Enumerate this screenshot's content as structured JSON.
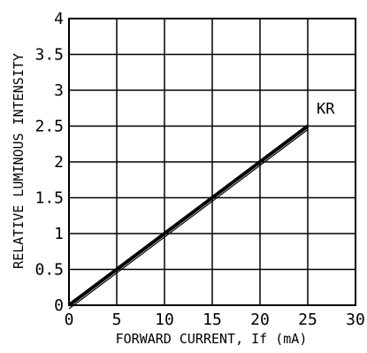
{
  "chart_data": {
    "type": "line",
    "xlabel": "FORWARD CURRENT, If (mA)",
    "ylabel": "RELATIVE LUMINOUS INTENSITY",
    "xlim": [
      0,
      30
    ],
    "ylim": [
      0,
      4
    ],
    "x_ticks": [
      "0",
      "5",
      "10",
      "15",
      "20",
      "25",
      "30"
    ],
    "y_ticks": [
      "0",
      "0.5",
      "1",
      "1.5",
      "2",
      "2.5",
      "3",
      "3.5",
      "4"
    ],
    "grid": true,
    "series": [
      {
        "name": "KR",
        "x": [
          0,
          25
        ],
        "y": [
          0,
          2.5
        ],
        "color": "#000000"
      }
    ]
  }
}
